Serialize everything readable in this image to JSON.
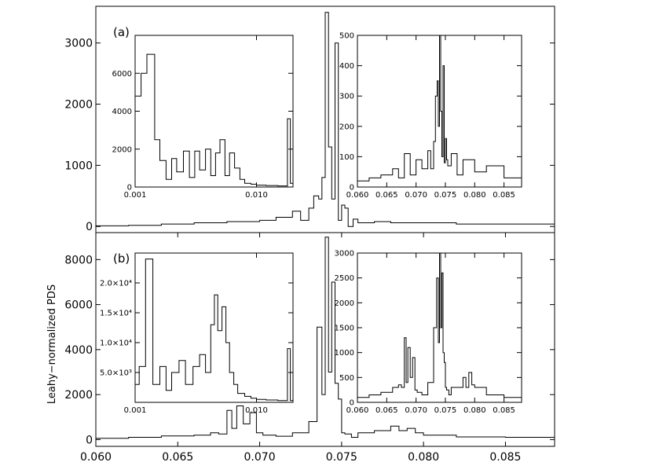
{
  "figure": {
    "ylabel": "Leahy−normalized PDS",
    "xticks": [
      "0.060",
      "0.065",
      "0.070",
      "0.075",
      "0.080",
      "0.085"
    ]
  },
  "chart_data": [
    {
      "id": "panel-a-main",
      "type": "line",
      "step": true,
      "label": "(a)",
      "xlim": [
        0.06,
        0.088
      ],
      "ylim": [
        -100,
        3600
      ],
      "yticks": [
        "0",
        "1000",
        "2000",
        "3000"
      ],
      "x": [
        0.06,
        0.062,
        0.064,
        0.066,
        0.068,
        0.07,
        0.071,
        0.072,
        0.0725,
        0.073,
        0.0733,
        0.0736,
        0.0738,
        0.074,
        0.0742,
        0.0744,
        0.0746,
        0.0748,
        0.075,
        0.0752,
        0.0754,
        0.0757,
        0.076,
        0.077,
        0.078,
        0.08,
        0.082,
        0.085,
        0.088
      ],
      "y": [
        10,
        20,
        40,
        60,
        80,
        100,
        150,
        250,
        100,
        300,
        500,
        450,
        800,
        3500,
        1300,
        450,
        3000,
        100,
        350,
        300,
        0,
        120,
        60,
        80,
        60,
        60,
        40,
        40,
        20
      ]
    },
    {
      "id": "panel-a-inset-left",
      "type": "line",
      "step": true,
      "xscale": "log",
      "xlim": [
        0.001,
        0.02
      ],
      "ylim": [
        0,
        8000
      ],
      "xticks": [
        "0.001",
        "0.010"
      ],
      "yticks": [
        "0",
        "2000",
        "4000",
        "6000"
      ],
      "x": [
        0.001,
        0.00112,
        0.00125,
        0.00145,
        0.0016,
        0.0018,
        0.002,
        0.0022,
        0.0025,
        0.0028,
        0.0031,
        0.0034,
        0.0038,
        0.0042,
        0.0046,
        0.005,
        0.0055,
        0.006,
        0.0066,
        0.0073,
        0.008,
        0.009,
        0.01,
        0.012,
        0.015,
        0.018,
        0.019
      ],
      "y": [
        4800,
        6000,
        7000,
        2500,
        1400,
        400,
        1500,
        800,
        1900,
        500,
        1900,
        900,
        2000,
        600,
        1800,
        2500,
        600,
        1800,
        1000,
        400,
        200,
        150,
        100,
        80,
        60,
        3600,
        200
      ]
    },
    {
      "id": "panel-a-inset-right",
      "type": "line",
      "step": true,
      "xlim": [
        0.06,
        0.088
      ],
      "ylim": [
        0,
        500
      ],
      "xticks": [
        "0.060",
        "0.065",
        "0.070",
        "0.075",
        "0.080",
        "0.085"
      ],
      "yticks": [
        "0",
        "100",
        "200",
        "300",
        "400",
        "500"
      ],
      "x": [
        0.06,
        0.062,
        0.064,
        0.066,
        0.067,
        0.068,
        0.069,
        0.07,
        0.071,
        0.072,
        0.0725,
        0.073,
        0.0733,
        0.0736,
        0.0738,
        0.074,
        0.0742,
        0.0744,
        0.0746,
        0.0748,
        0.075,
        0.0752,
        0.0754,
        0.076,
        0.077,
        0.078,
        0.08,
        0.082,
        0.085,
        0.088
      ],
      "y": [
        20,
        30,
        40,
        60,
        30,
        110,
        40,
        90,
        60,
        120,
        60,
        150,
        300,
        350,
        200,
        500,
        250,
        100,
        400,
        80,
        160,
        90,
        70,
        110,
        40,
        90,
        50,
        70,
        30,
        20
      ]
    },
    {
      "id": "panel-b-main",
      "type": "line",
      "step": true,
      "label": "(b)",
      "xlim": [
        0.06,
        0.088
      ],
      "ylim": [
        -300,
        9200
      ],
      "yticks": [
        "0",
        "2000",
        "4000",
        "6000",
        "8000"
      ],
      "xticks": [
        "0.060",
        "0.065",
        "0.070",
        "0.075",
        "0.080",
        "0.085"
      ],
      "x": [
        0.06,
        0.062,
        0.064,
        0.066,
        0.067,
        0.0675,
        0.068,
        0.0683,
        0.0686,
        0.069,
        0.0694,
        0.0698,
        0.0702,
        0.071,
        0.072,
        0.073,
        0.0735,
        0.0738,
        0.074,
        0.0742,
        0.0744,
        0.0746,
        0.0748,
        0.075,
        0.0752,
        0.0756,
        0.076,
        0.077,
        0.078,
        0.0785,
        0.079,
        0.0795,
        0.08,
        0.082,
        0.085,
        0.088
      ],
      "y": [
        60,
        100,
        160,
        200,
        300,
        250,
        1300,
        500,
        1500,
        700,
        1200,
        300,
        200,
        150,
        300,
        800,
        5000,
        2000,
        9000,
        3000,
        7000,
        2500,
        1800,
        300,
        250,
        100,
        300,
        400,
        600,
        400,
        500,
        300,
        200,
        120,
        100,
        60
      ]
    },
    {
      "id": "panel-b-inset-left",
      "type": "line",
      "step": true,
      "xscale": "log",
      "xlim": [
        0.001,
        0.02
      ],
      "ylim": [
        0,
        25000
      ],
      "xticks": [
        "0.001",
        "0.010"
      ],
      "yticks": [
        "5.0×10³",
        "1.0×10⁴",
        "1.5×10⁴",
        "2.0×10⁴"
      ],
      "x": [
        0.001,
        0.00108,
        0.00122,
        0.0014,
        0.0016,
        0.0018,
        0.002,
        0.0023,
        0.0026,
        0.003,
        0.0034,
        0.0038,
        0.0042,
        0.0045,
        0.0048,
        0.0052,
        0.0056,
        0.006,
        0.0065,
        0.007,
        0.008,
        0.009,
        0.01,
        0.012,
        0.015,
        0.018,
        0.019
      ],
      "y": [
        3000,
        6000,
        24000,
        3000,
        6000,
        2000,
        5000,
        7000,
        3000,
        6000,
        8000,
        5000,
        13000,
        18000,
        12000,
        16000,
        10000,
        5000,
        3000,
        1500,
        1000,
        700,
        500,
        400,
        300,
        9000,
        300
      ]
    },
    {
      "id": "panel-b-inset-right",
      "type": "line",
      "step": true,
      "xlim": [
        0.06,
        0.088
      ],
      "ylim": [
        0,
        3000
      ],
      "xticks": [
        "0.060",
        "0.065",
        "0.070",
        "0.075",
        "0.080",
        "0.085"
      ],
      "yticks": [
        "0",
        "500",
        "1000",
        "1500",
        "2000",
        "2500",
        "3000"
      ],
      "x": [
        0.06,
        0.062,
        0.064,
        0.066,
        0.067,
        0.0675,
        0.068,
        0.0683,
        0.0686,
        0.069,
        0.0694,
        0.0698,
        0.0702,
        0.071,
        0.072,
        0.073,
        0.0735,
        0.0738,
        0.074,
        0.0742,
        0.0744,
        0.0746,
        0.0748,
        0.075,
        0.0752,
        0.0756,
        0.076,
        0.077,
        0.078,
        0.0785,
        0.079,
        0.0795,
        0.08,
        0.082,
        0.085,
        0.088
      ],
      "y": [
        100,
        150,
        200,
        300,
        350,
        300,
        1300,
        400,
        1100,
        500,
        900,
        250,
        200,
        150,
        400,
        1500,
        2500,
        1200,
        3000,
        1500,
        2600,
        1000,
        800,
        300,
        250,
        150,
        300,
        300,
        500,
        300,
        600,
        350,
        300,
        150,
        100,
        80
      ]
    }
  ]
}
